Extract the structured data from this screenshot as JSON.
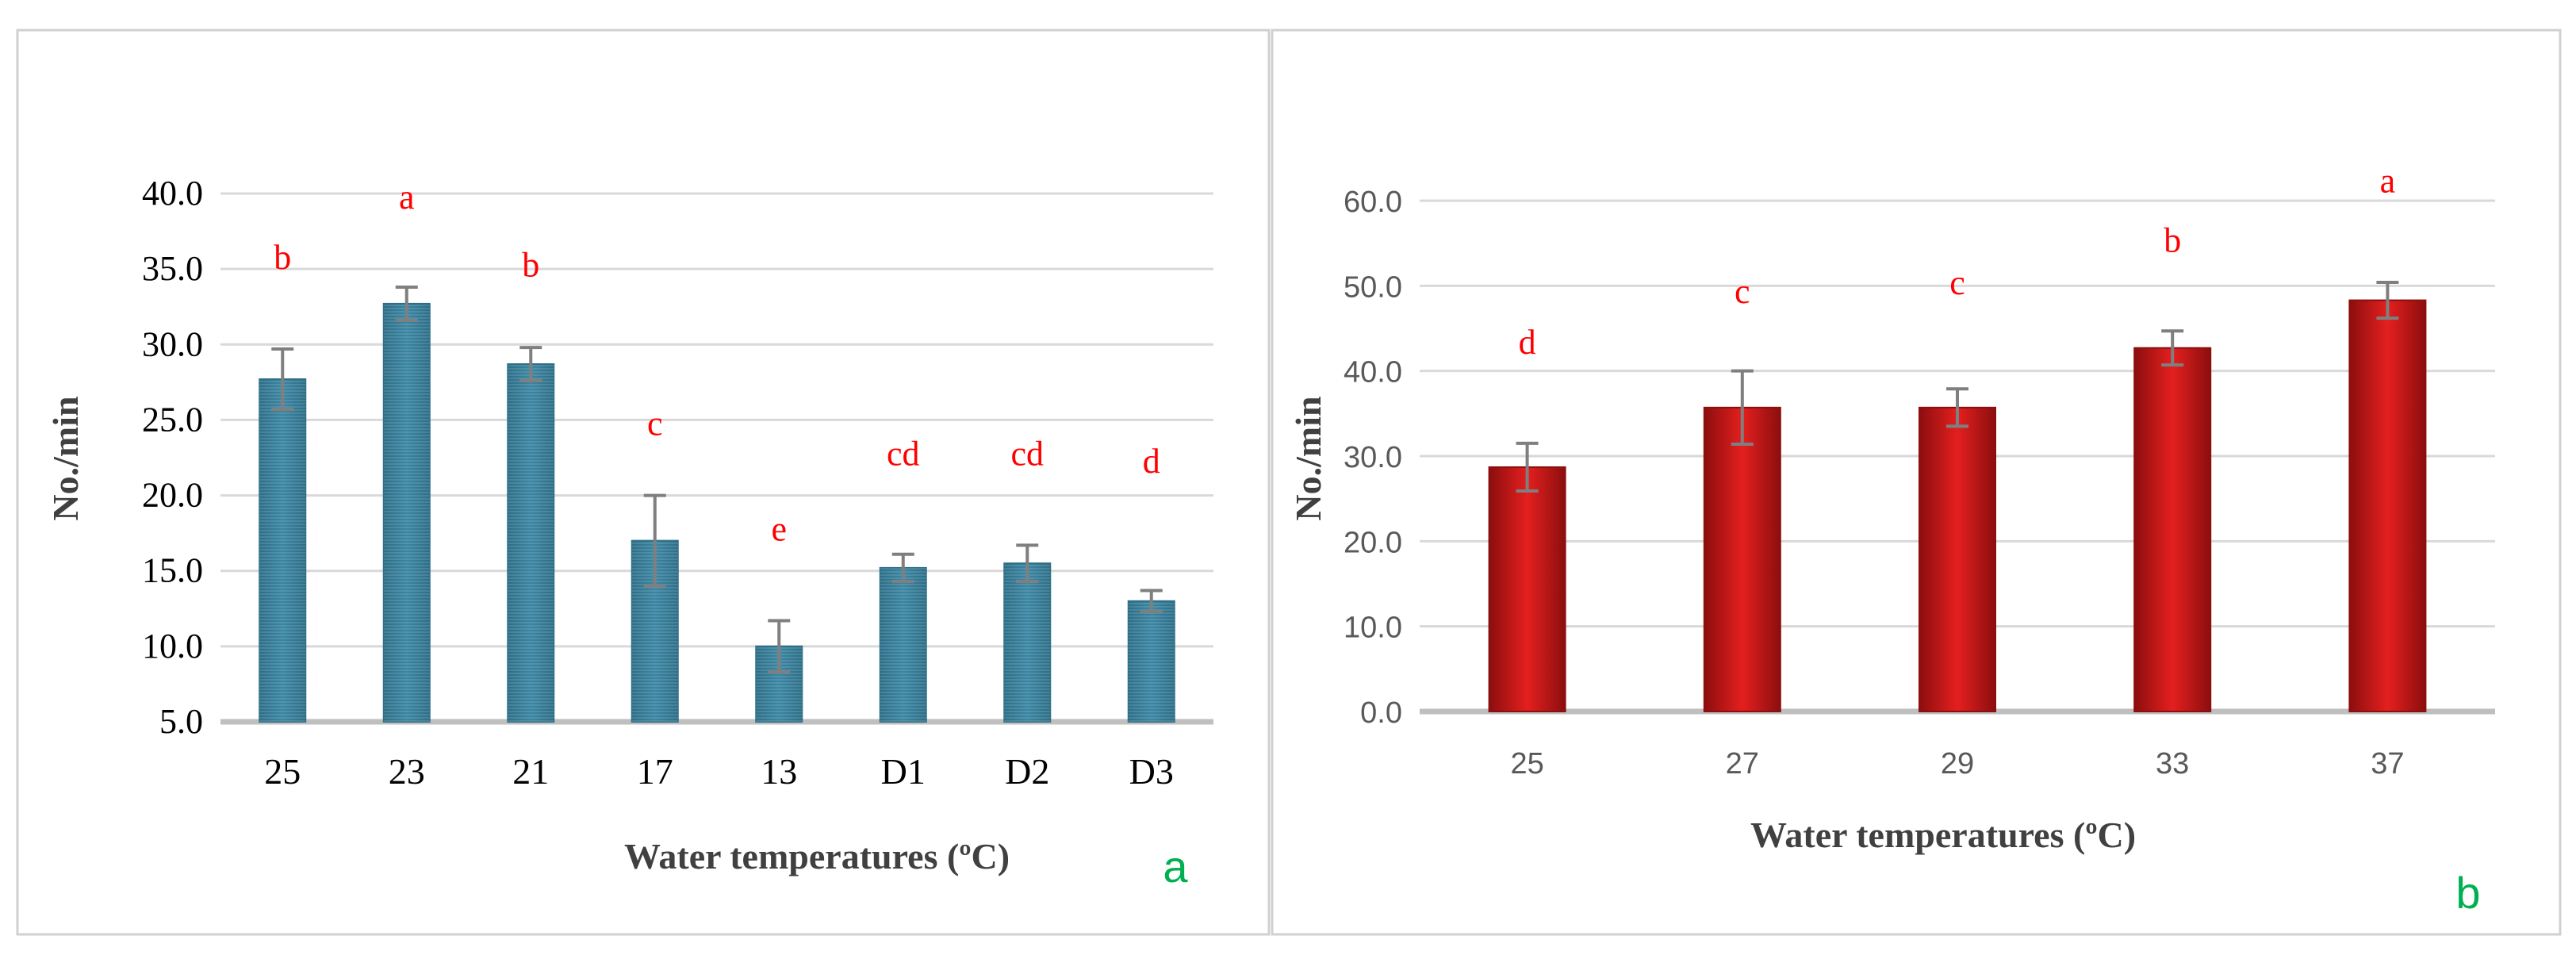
{
  "colors": {
    "bar_a": "#3b86a3",
    "bar_a_edge": "#2d6e87",
    "bar_b": "#e41f1f",
    "bar_b_edge": "#8c0e0e",
    "gridline": "#d9d9d9",
    "axis_line": "#bfbfbf",
    "error_bar": "#7f7f7f",
    "significance": "#ff0000",
    "panel_label": "#00b050",
    "panel_border": "#d0d0d0"
  },
  "chart_data": [
    {
      "type": "bar",
      "panel_label": "a",
      "title": "",
      "xlabel": "Water temperatures (ºC)",
      "ylabel": "No./min",
      "categories": [
        "25",
        "23",
        "21",
        "17",
        "13",
        "D1",
        "D2",
        "D3"
      ],
      "values": [
        27.7,
        32.7,
        28.7,
        17.0,
        10.0,
        15.2,
        15.5,
        13.0
      ],
      "errors": [
        2.0,
        1.1,
        1.1,
        3.0,
        1.7,
        0.9,
        1.2,
        0.7
      ],
      "significance_labels": [
        "b",
        "a",
        "b",
        "c",
        "e",
        "cd",
        "cd",
        "d"
      ],
      "significance_values": [
        35.0,
        39.0,
        34.5,
        24.0,
        17.0,
        22.0,
        22.0,
        21.5
      ],
      "ylim": [
        5.0,
        40.0
      ],
      "yticks": [
        "5.0",
        "10.0",
        "15.0",
        "20.0",
        "25.0",
        "30.0",
        "35.0",
        "40.0"
      ],
      "grid": true
    },
    {
      "type": "bar",
      "panel_label": "b",
      "title": "",
      "xlabel": "Water temperatures (ºC)",
      "ylabel": "No./min",
      "categories": [
        "25",
        "27",
        "29",
        "33",
        "37"
      ],
      "values": [
        28.7,
        35.7,
        35.7,
        42.7,
        48.3
      ],
      "errors": [
        2.8,
        4.3,
        2.2,
        2.0,
        2.1
      ],
      "significance_labels": [
        "d",
        "c",
        "c",
        "b",
        "a"
      ],
      "significance_values": [
        42.0,
        48.0,
        49.0,
        54.0,
        61.0
      ],
      "ylim": [
        0.0,
        60.0
      ],
      "yticks": [
        "0.0",
        "10.0",
        "20.0",
        "30.0",
        "40.0",
        "50.0",
        "60.0"
      ],
      "grid": true
    }
  ]
}
